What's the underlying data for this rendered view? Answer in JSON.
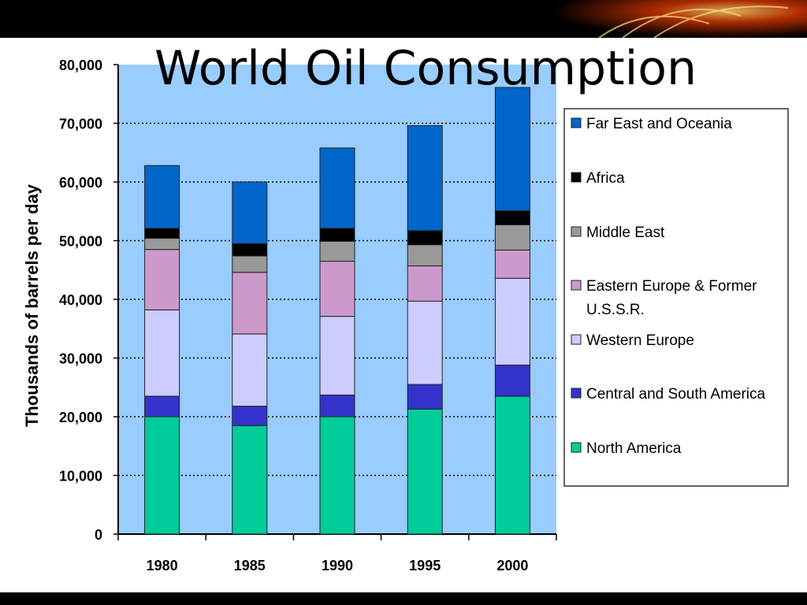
{
  "slide": {
    "title": "World Oil Consumption"
  },
  "chart_data": {
    "type": "bar",
    "stacked": true,
    "title": "",
    "xlabel": "",
    "ylabel": "Thousands of barrels per day",
    "ylim": [
      0,
      80000
    ],
    "yticks": [
      0,
      10000,
      20000,
      30000,
      40000,
      50000,
      60000,
      70000,
      80000
    ],
    "ytick_labels": [
      "0",
      "10,000",
      "20,000",
      "30,000",
      "40,000",
      "50,000",
      "60,000",
      "70,000",
      "80,000"
    ],
    "grid": "horizontal-dotted",
    "legend_position": "right",
    "categories": [
      "1980",
      "1985",
      "1990",
      "1995",
      "2000"
    ],
    "series": [
      {
        "name": "North America",
        "color": "#00cc99",
        "values": [
          20000,
          18500,
          20000,
          21300,
          23500
        ]
      },
      {
        "name": "Central and South America",
        "color": "#3333cc",
        "values": [
          3500,
          3300,
          3700,
          4200,
          5300
        ]
      },
      {
        "name": "Western Europe",
        "color": "#ccccff",
        "values": [
          14700,
          12300,
          13400,
          14200,
          14800
        ]
      },
      {
        "name": "Eastern Europe & Former U.S.S.R.",
        "color": "#cc99cc",
        "values": [
          10300,
          10500,
          9400,
          6000,
          4800
        ]
      },
      {
        "name": "Middle East",
        "color": "#999999",
        "values": [
          1900,
          2800,
          3400,
          3600,
          4300
        ]
      },
      {
        "name": "Africa",
        "color": "#000000",
        "values": [
          1700,
          2100,
          2200,
          2400,
          2400
        ]
      },
      {
        "name": "Far East and Oceania",
        "color": "#0066cc",
        "values": [
          10700,
          10500,
          13700,
          17900,
          21000
        ]
      }
    ],
    "legend_order": [
      6,
      5,
      4,
      3,
      2,
      1,
      0
    ],
    "colors": {
      "plot_background": "#99ccff",
      "legend_background": "#ffffff"
    }
  }
}
